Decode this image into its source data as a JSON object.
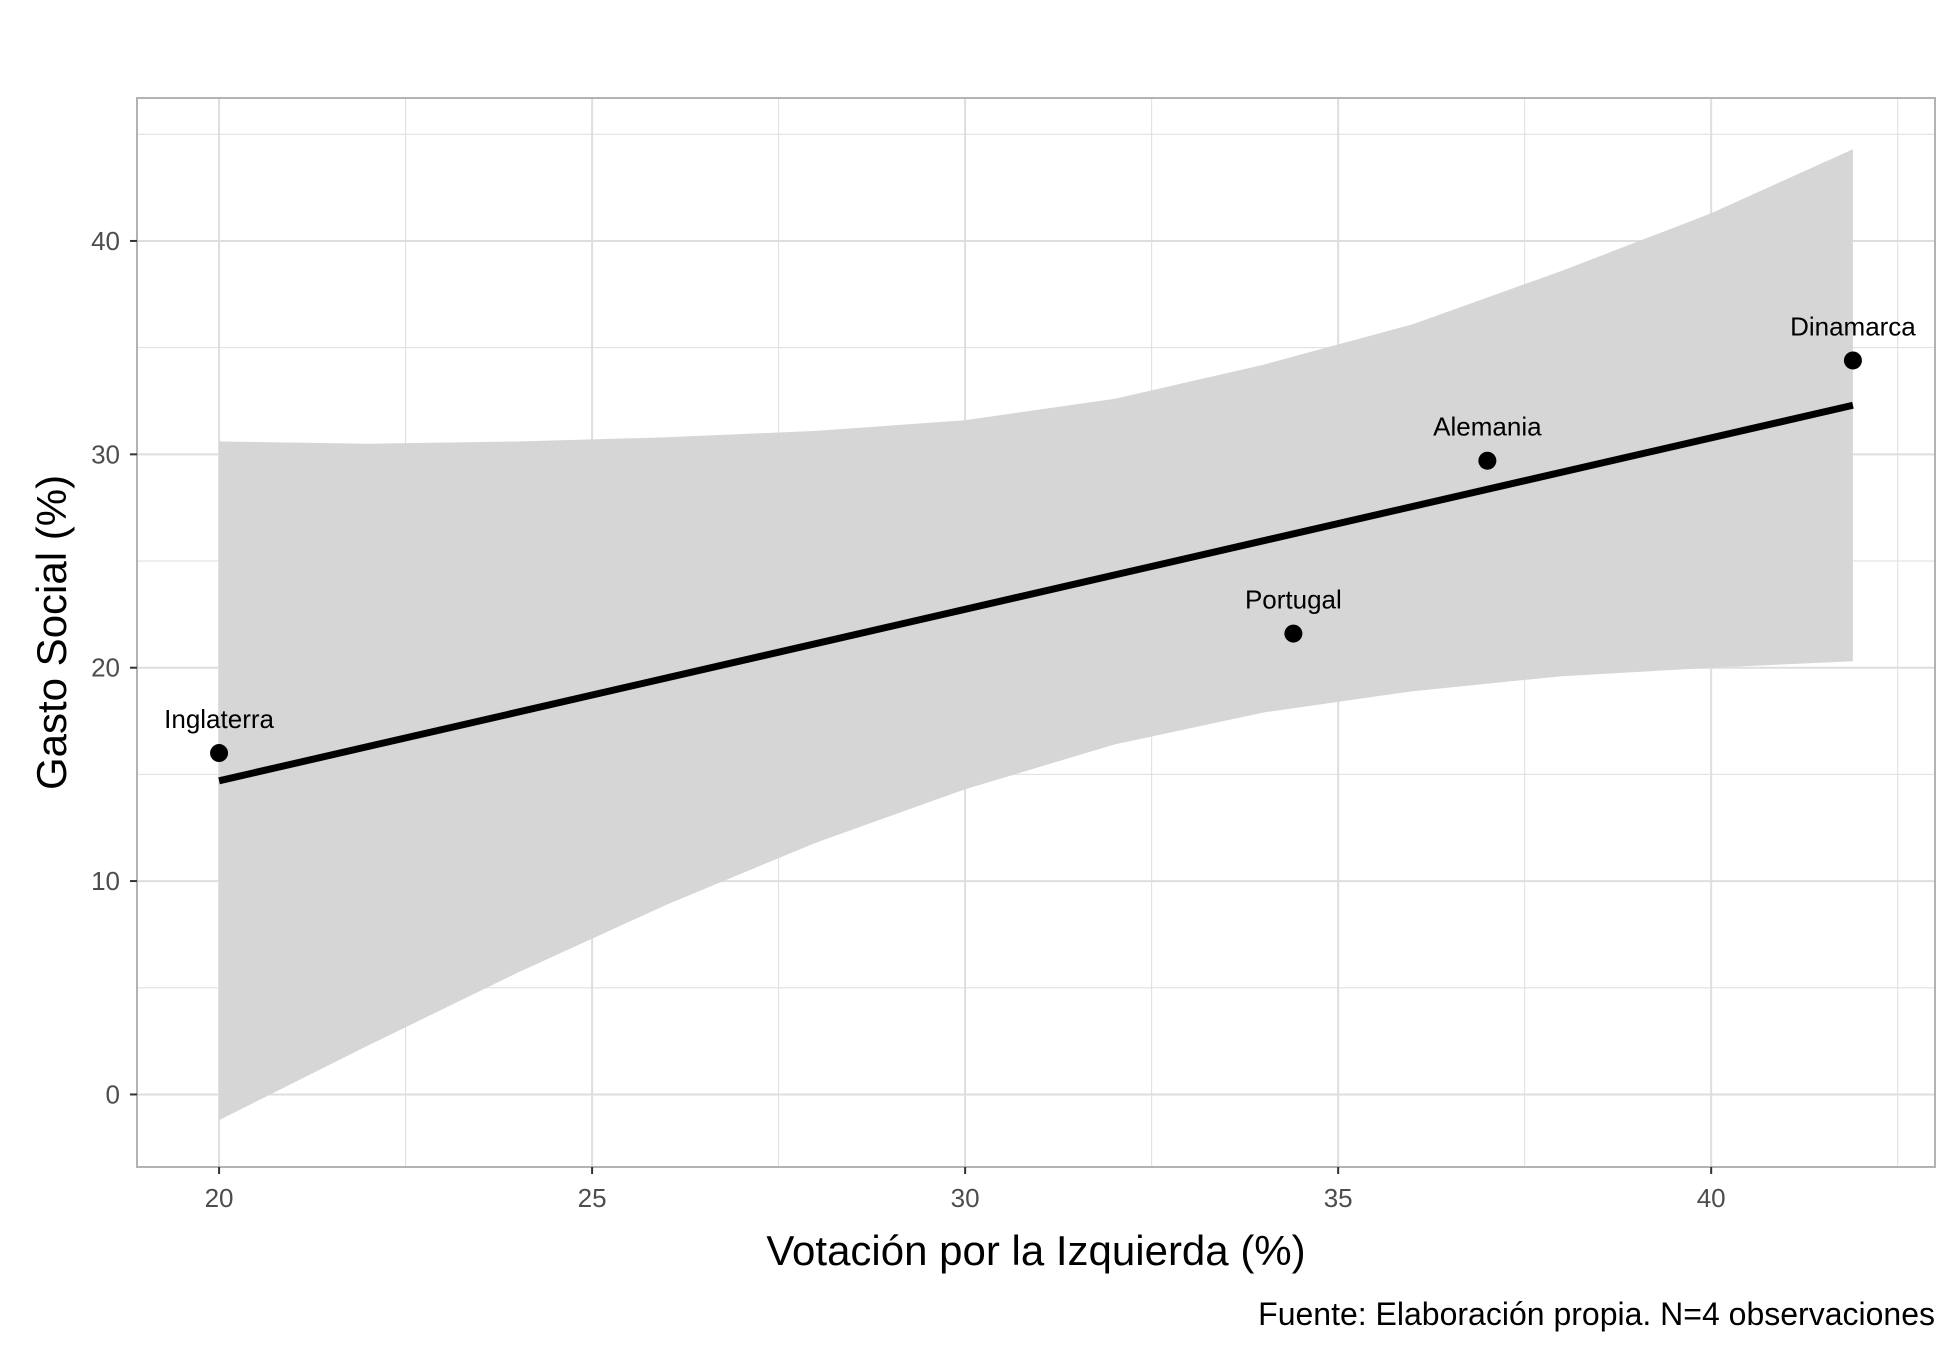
{
  "chart_data": {
    "type": "scatter",
    "xlabel": "Votación por la Izquierda (%)",
    "ylabel": "Gasto Social (%)",
    "caption": "Fuente: Elaboración propia. N=4 observaciones",
    "xlim": [
      18.9,
      43.0
    ],
    "ylim": [
      -3.4,
      46.7
    ],
    "x_ticks": [
      20,
      25,
      30,
      35,
      40
    ],
    "y_ticks": [
      0,
      10,
      20,
      30,
      40
    ],
    "grid": true,
    "points": [
      {
        "label": "Inglaterra",
        "x": 20.0,
        "y": 16.0
      },
      {
        "label": "Portugal",
        "x": 34.4,
        "y": 21.6
      },
      {
        "label": "Alemania",
        "x": 37.0,
        "y": 29.7
      },
      {
        "label": "Dinamarca",
        "x": 41.9,
        "y": 34.4
      }
    ],
    "regression": {
      "method": "lm",
      "x": [
        20.0,
        41.9
      ],
      "y": [
        14.7,
        32.3
      ]
    },
    "confidence_band": {
      "x": [
        20.0,
        22.0,
        24.0,
        26.0,
        28.0,
        30.0,
        32.0,
        34.0,
        36.0,
        38.0,
        40.0,
        41.9
      ],
      "lower": [
        -1.2,
        2.3,
        5.7,
        8.9,
        11.8,
        14.3,
        16.4,
        17.9,
        18.9,
        19.6,
        20.0,
        20.3
      ],
      "upper": [
        30.6,
        30.5,
        30.6,
        30.8,
        31.1,
        31.6,
        32.6,
        34.2,
        36.1,
        38.6,
        41.3,
        44.3
      ]
    },
    "colors": {
      "points": "#000000",
      "line": "#000000",
      "band": "#d4d4d4",
      "grid": "#dedede",
      "panel_border": "#b3b3b3",
      "tick_text": "#4d4d4d"
    }
  }
}
